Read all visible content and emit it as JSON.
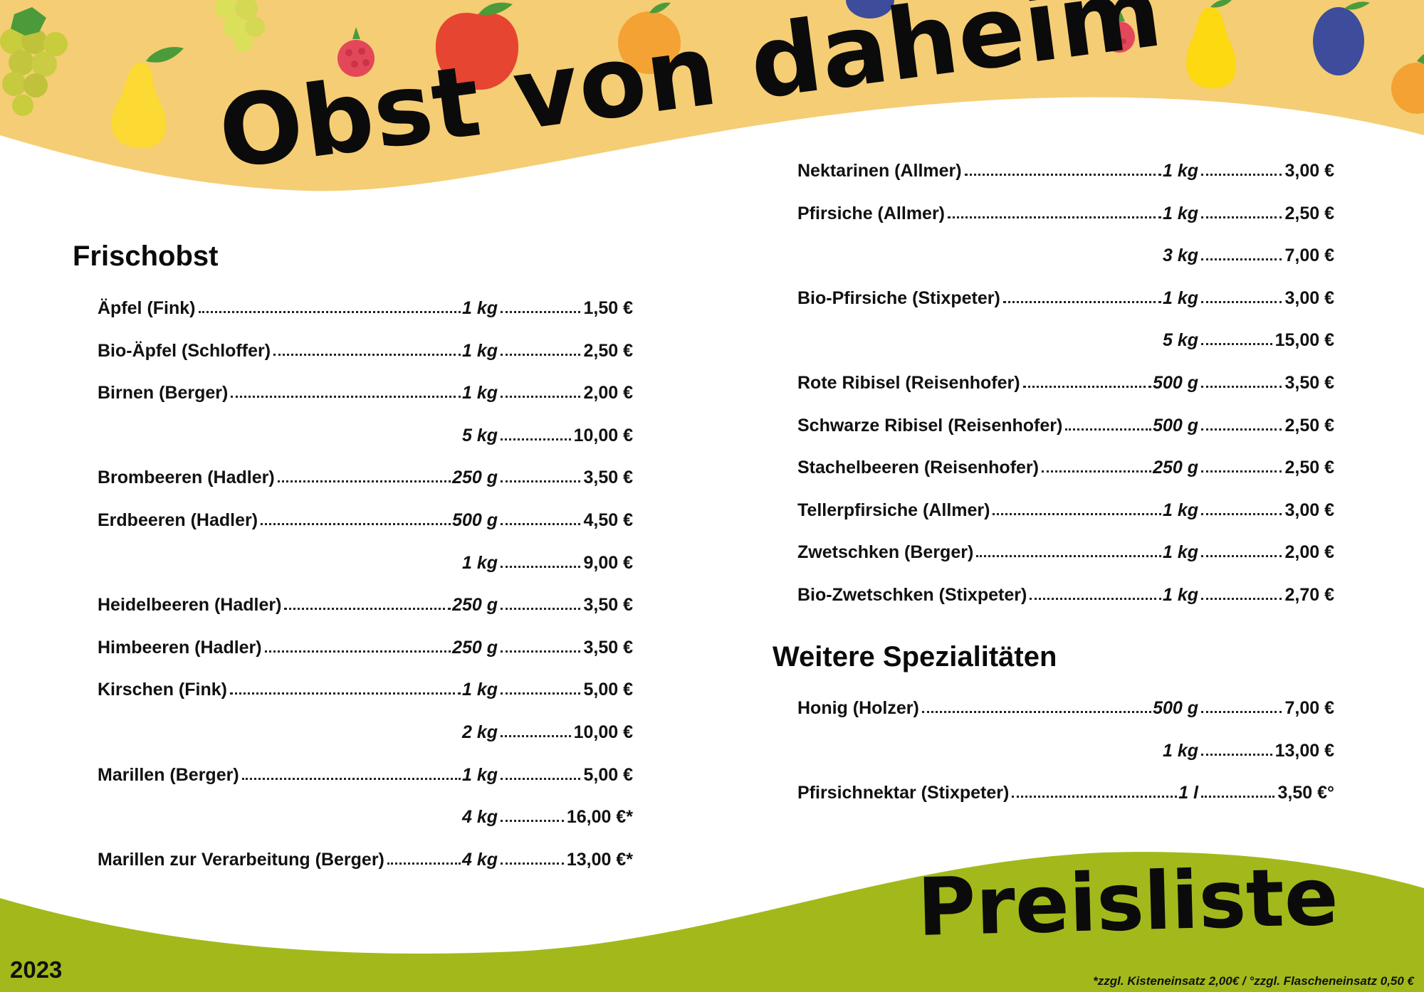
{
  "header": {
    "title": "Obst von daheim"
  },
  "footer": {
    "title": "Preisliste",
    "year": "2023",
    "note": "*zzgl. Kisteneinsatz 2,00€ / °zzgl. Flascheneinsatz 0,50 €"
  },
  "colors": {
    "banner_top": "#f5cd74",
    "banner_bottom": "#a3b91b",
    "text": "#111111"
  },
  "icons": [
    "grapes-icon",
    "pear-icon",
    "raspberry-icon",
    "apple-icon",
    "apricot-icon",
    "plum-icon"
  ],
  "sections": {
    "frischobst": {
      "title": "Frischobst",
      "rows": [
        {
          "name": "Äpfel (Fink)",
          "qty": "1 kg",
          "price": "1,50 €"
        },
        {
          "name": "Bio-Äpfel (Schloffer)",
          "qty": "1 kg",
          "price": "2,50 €"
        },
        {
          "name": "Birnen (Berger)",
          "qty": "1 kg",
          "price": "2,00 €"
        },
        {
          "name": "",
          "qty": "5 kg",
          "price": "10,00 €"
        },
        {
          "name": "Brombeeren (Hadler)",
          "qty": "250 g",
          "price": "3,50 €"
        },
        {
          "name": "Erdbeeren (Hadler)",
          "qty": "500 g",
          "price": "4,50 €"
        },
        {
          "name": "",
          "qty": "1 kg",
          "price": "9,00 €"
        },
        {
          "name": "Heidelbeeren (Hadler)",
          "qty": "250 g",
          "price": "3,50 €"
        },
        {
          "name": "Himbeeren (Hadler)",
          "qty": "250 g",
          "price": "3,50 €"
        },
        {
          "name": "Kirschen (Fink)",
          "qty": "1 kg",
          "price": "5,00 €"
        },
        {
          "name": "",
          "qty": "2 kg",
          "price": "10,00 €"
        },
        {
          "name": "Marillen (Berger)",
          "qty": "1 kg",
          "price": "5,00 €"
        },
        {
          "name": "",
          "qty": "4 kg",
          "price": "16,00 €*"
        },
        {
          "name": "Marillen zur Verarbeitung (Berger)",
          "qty": "4 kg",
          "price": "13,00 €*"
        }
      ]
    },
    "frischobst2": {
      "rows": [
        {
          "name": "Nektarinen (Allmer)",
          "qty": "1 kg",
          "price": "3,00 €"
        },
        {
          "name": "Pfirsiche (Allmer)",
          "qty": "1 kg",
          "price": "2,50 €"
        },
        {
          "name": "",
          "qty": "3 kg",
          "price": "7,00 €"
        },
        {
          "name": "Bio-Pfirsiche (Stixpeter)",
          "qty": "1 kg",
          "price": "3,00 €"
        },
        {
          "name": "",
          "qty": "5 kg",
          "price": "15,00 €"
        },
        {
          "name": "Rote Ribisel (Reisenhofer)",
          "qty": "500 g",
          "price": "3,50 €"
        },
        {
          "name": "Schwarze Ribisel (Reisenhofer)",
          "qty": "500 g",
          "price": "2,50 €"
        },
        {
          "name": "Stachelbeeren (Reisenhofer)",
          "qty": "250 g",
          "price": "2,50 €"
        },
        {
          "name": "Tellerpfirsiche (Allmer)",
          "qty": "1 kg",
          "price": "3,00 €"
        },
        {
          "name": "Zwetschken (Berger)",
          "qty": "1 kg",
          "price": "2,00 €"
        },
        {
          "name": "Bio-Zwetschken (Stixpeter)",
          "qty": "1 kg",
          "price": "2,70 €"
        }
      ]
    },
    "spezialitaeten": {
      "title": "Weitere Spezialitäten",
      "rows": [
        {
          "name": "Honig (Holzer)",
          "qty": "500 g",
          "price": "7,00 €"
        },
        {
          "name": "",
          "qty": "1 kg",
          "price": "13,00 €"
        },
        {
          "name": "Pfirsichnektar (Stixpeter)",
          "qty": "1 l",
          "price": "3,50 €°"
        }
      ]
    }
  }
}
